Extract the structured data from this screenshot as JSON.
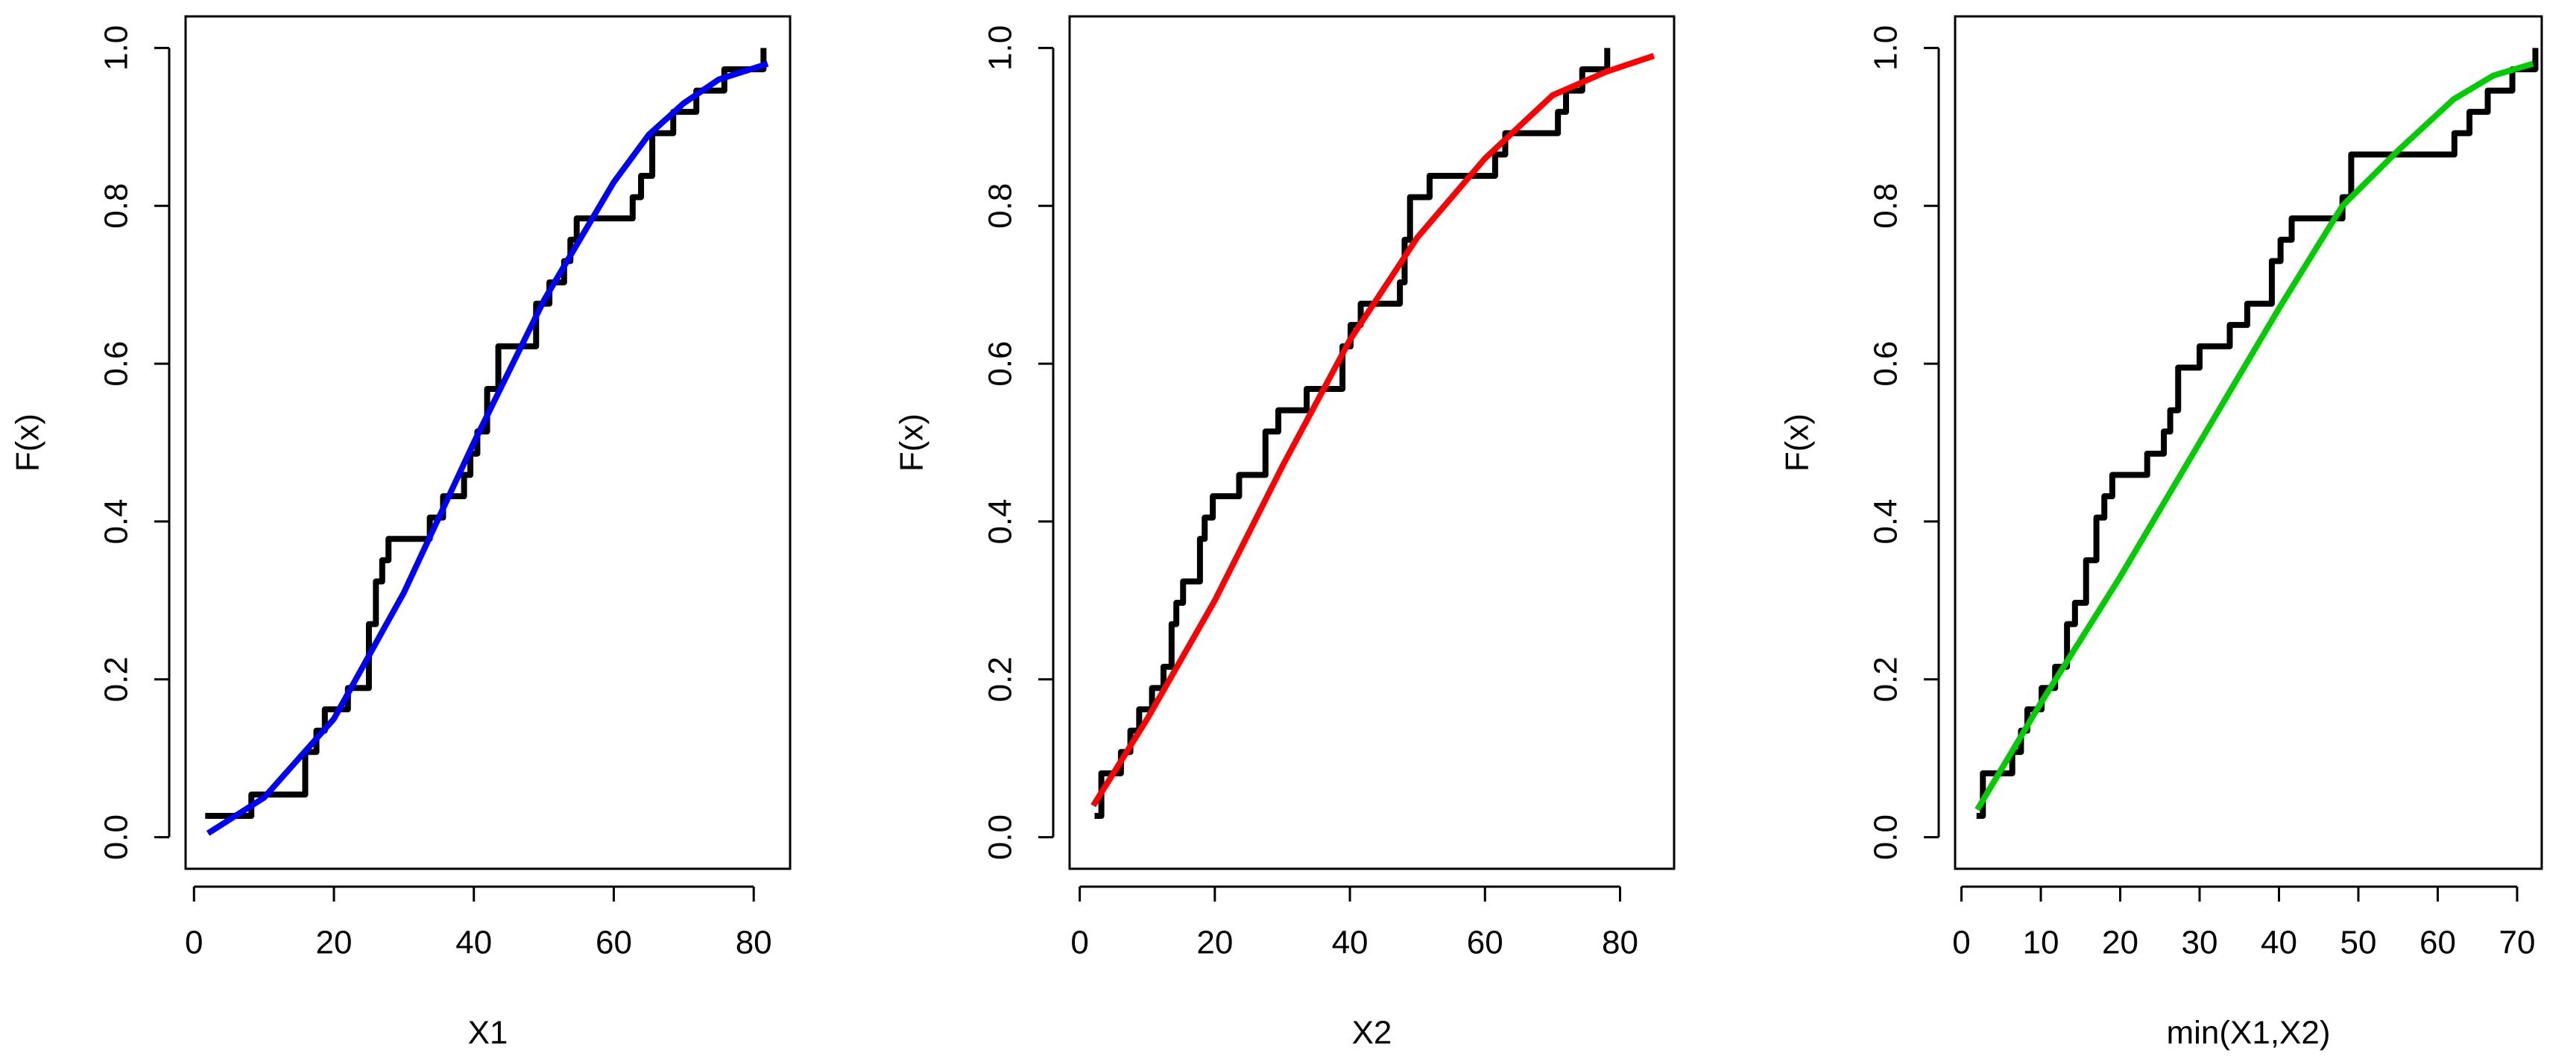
{
  "chart_data": [
    {
      "type": "line",
      "xlabel": "X1",
      "ylabel": "F(x)",
      "xlim": [
        -1.2,
        85.2
      ],
      "ylim": [
        -0.04,
        1.04
      ],
      "xticks": [
        0,
        20,
        40,
        60,
        80
      ],
      "yticks": [
        {
          "value": 0,
          "label": "0.0"
        },
        0.2,
        0.4,
        0.6,
        0.8,
        {
          "value": 1,
          "label": "1.0"
        }
      ],
      "series": [
        {
          "color": "#000000",
          "drawstyle": "steps-post",
          "x": [
            1.6,
            8.2,
            15.9,
            17.5,
            18.7,
            22.0,
            25.0,
            26.0,
            26.9,
            27.8,
            33.7,
            35.6,
            38.6,
            39.5,
            40.5,
            41.9,
            43.5,
            48.9,
            50.8,
            52.9,
            53.8,
            54.7,
            62.7,
            63.9,
            65.5,
            68.5,
            71.8,
            75.8,
            81.4
          ],
          "values": [
            0.027,
            0.054,
            0.108,
            0.135,
            0.162,
            0.189,
            0.27,
            0.324,
            0.351,
            0.378,
            0.405,
            0.432,
            0.459,
            0.486,
            0.514,
            0.568,
            0.622,
            0.676,
            0.703,
            0.73,
            0.757,
            0.784,
            0.811,
            0.838,
            0.892,
            0.919,
            0.946,
            0.973,
            1.0
          ]
        },
        {
          "color": "#0000ff",
          "drawstyle": "default",
          "x": [
            2,
            10,
            20,
            30,
            40,
            50,
            60,
            65,
            70,
            75,
            82
          ],
          "values": [
            0.005,
            0.05,
            0.15,
            0.31,
            0.5,
            0.68,
            0.83,
            0.89,
            0.93,
            0.96,
            0.98
          ]
        }
      ]
    },
    {
      "type": "line",
      "xlabel": "X2",
      "ylabel": "F(x)",
      "xlim": [
        -1.5,
        88
      ],
      "ylim": [
        -0.04,
        1.04
      ],
      "xticks": [
        0,
        20,
        40,
        60,
        80
      ],
      "yticks": [
        {
          "value": 0,
          "label": "0.0"
        },
        0.2,
        0.4,
        0.6,
        0.8,
        {
          "value": 1,
          "label": "1.0"
        }
      ],
      "series": [
        {
          "color": "#000000",
          "drawstyle": "steps-post",
          "x": [
            2.2,
            3.2,
            6.1,
            7.5,
            8.8,
            10.7,
            12.4,
            13.6,
            14.3,
            15.3,
            17.8,
            18.5,
            19.7,
            23.6,
            27.5,
            29.4,
            33.6,
            38.9,
            40.1,
            41.6,
            47.4,
            48.1,
            48.9,
            51.8,
            61.5,
            63.0,
            70.8,
            72.0,
            74.4,
            78.1
          ],
          "values": [
            0.027,
            0.081,
            0.108,
            0.135,
            0.162,
            0.189,
            0.216,
            0.27,
            0.297,
            0.324,
            0.378,
            0.405,
            0.432,
            0.459,
            0.514,
            0.541,
            0.568,
            0.622,
            0.649,
            0.676,
            0.703,
            0.757,
            0.811,
            0.838,
            0.865,
            0.892,
            0.919,
            0.946,
            0.973,
            1.0
          ]
        },
        {
          "color": "#ff0000",
          "drawstyle": "default",
          "x": [
            2,
            10,
            20,
            30,
            40,
            50,
            60,
            65,
            70,
            78,
            85
          ],
          "values": [
            0.04,
            0.15,
            0.3,
            0.47,
            0.63,
            0.76,
            0.86,
            0.9,
            0.94,
            0.97,
            0.99
          ]
        }
      ]
    },
    {
      "type": "line",
      "xlabel": "min(X1,X2)",
      "ylabel": "F(x)",
      "xlim": [
        -0.8,
        73.1
      ],
      "ylim": [
        -0.04,
        1.04
      ],
      "xticks": [
        0,
        10,
        20,
        30,
        40,
        50,
        60,
        70
      ],
      "yticks": [
        {
          "value": 0,
          "label": "0.0"
        },
        0.2,
        0.4,
        0.6,
        0.8,
        {
          "value": 1,
          "label": "1.0"
        }
      ],
      "series": [
        {
          "color": "#000000",
          "drawstyle": "steps-post",
          "x": [
            1.9,
            2.7,
            6.4,
            7.5,
            8.3,
            10.1,
            11.8,
            13.3,
            14.3,
            15.7,
            17.0,
            18.0,
            19.0,
            23.4,
            25.5,
            26.3,
            27.3,
            30.0,
            33.8,
            36.0,
            39.1,
            40.2,
            41.6,
            48.0,
            49.1,
            62.1,
            64.0,
            66.3,
            69.4,
            72.3
          ],
          "values": [
            0.027,
            0.081,
            0.108,
            0.135,
            0.162,
            0.189,
            0.216,
            0.27,
            0.297,
            0.351,
            0.405,
            0.432,
            0.459,
            0.486,
            0.514,
            0.541,
            0.595,
            0.622,
            0.649,
            0.676,
            0.73,
            0.757,
            0.784,
            0.811,
            0.865,
            0.892,
            0.919,
            0.946,
            0.973,
            1.0
          ]
        },
        {
          "color": "#00cc00",
          "drawstyle": "default",
          "x": [
            2,
            10,
            20,
            30,
            40,
            48,
            55,
            62,
            67,
            72
          ],
          "values": [
            0.035,
            0.17,
            0.33,
            0.5,
            0.67,
            0.8,
            0.87,
            0.935,
            0.965,
            0.98
          ]
        }
      ]
    }
  ]
}
